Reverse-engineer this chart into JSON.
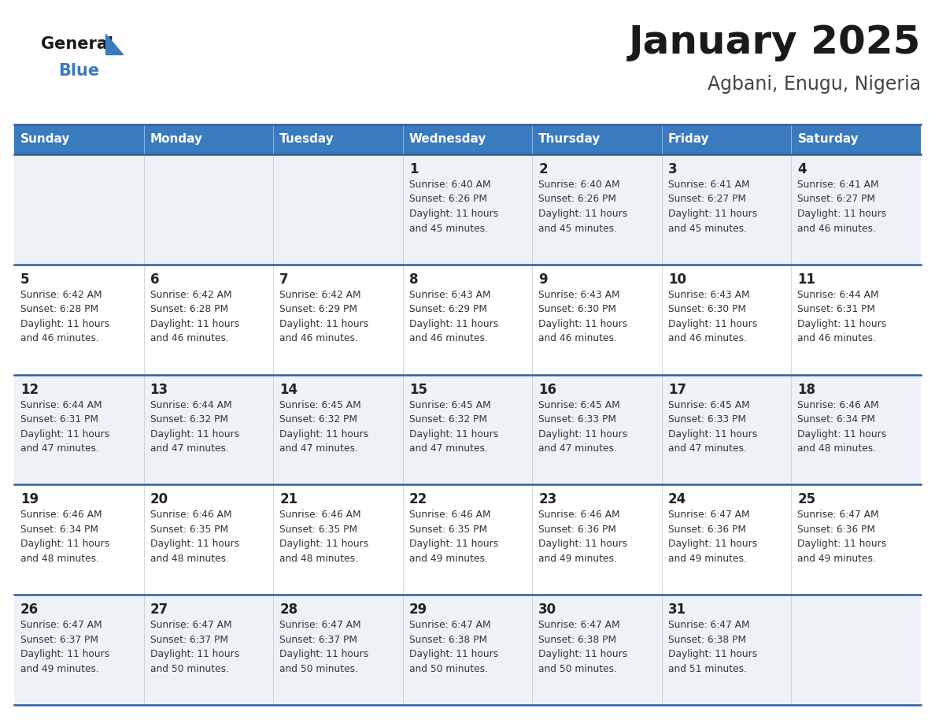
{
  "title": "January 2025",
  "subtitle": "Agbani, Enugu, Nigeria",
  "days_of_week": [
    "Sunday",
    "Monday",
    "Tuesday",
    "Wednesday",
    "Thursday",
    "Friday",
    "Saturday"
  ],
  "header_bg": "#3a7abf",
  "header_text": "#ffffff",
  "row_bg_odd": "#eef2f7",
  "row_bg_even": "#ffffff",
  "divider_color": "#2e5f9e",
  "cell_text_color": "#333333",
  "day_num_color": "#222222",
  "title_color": "#1a1a1a",
  "subtitle_color": "#444444",
  "logo_general_color": "#1a1a1a",
  "logo_blue_color": "#3a7abf",
  "logo_triangle_color": "#3a7abf",
  "calendar": [
    [
      {
        "day": "",
        "sunrise": "",
        "sunset": "",
        "daylight": ""
      },
      {
        "day": "",
        "sunrise": "",
        "sunset": "",
        "daylight": ""
      },
      {
        "day": "",
        "sunrise": "",
        "sunset": "",
        "daylight": ""
      },
      {
        "day": "1",
        "sunrise": "6:40 AM",
        "sunset": "6:26 PM",
        "daylight": "11 hours and 45 minutes."
      },
      {
        "day": "2",
        "sunrise": "6:40 AM",
        "sunset": "6:26 PM",
        "daylight": "11 hours and 45 minutes."
      },
      {
        "day": "3",
        "sunrise": "6:41 AM",
        "sunset": "6:27 PM",
        "daylight": "11 hours and 45 minutes."
      },
      {
        "day": "4",
        "sunrise": "6:41 AM",
        "sunset": "6:27 PM",
        "daylight": "11 hours and 46 minutes."
      }
    ],
    [
      {
        "day": "5",
        "sunrise": "6:42 AM",
        "sunset": "6:28 PM",
        "daylight": "11 hours and 46 minutes."
      },
      {
        "day": "6",
        "sunrise": "6:42 AM",
        "sunset": "6:28 PM",
        "daylight": "11 hours and 46 minutes."
      },
      {
        "day": "7",
        "sunrise": "6:42 AM",
        "sunset": "6:29 PM",
        "daylight": "11 hours and 46 minutes."
      },
      {
        "day": "8",
        "sunrise": "6:43 AM",
        "sunset": "6:29 PM",
        "daylight": "11 hours and 46 minutes."
      },
      {
        "day": "9",
        "sunrise": "6:43 AM",
        "sunset": "6:30 PM",
        "daylight": "11 hours and 46 minutes."
      },
      {
        "day": "10",
        "sunrise": "6:43 AM",
        "sunset": "6:30 PM",
        "daylight": "11 hours and 46 minutes."
      },
      {
        "day": "11",
        "sunrise": "6:44 AM",
        "sunset": "6:31 PM",
        "daylight": "11 hours and 46 minutes."
      }
    ],
    [
      {
        "day": "12",
        "sunrise": "6:44 AM",
        "sunset": "6:31 PM",
        "daylight": "11 hours and 47 minutes."
      },
      {
        "day": "13",
        "sunrise": "6:44 AM",
        "sunset": "6:32 PM",
        "daylight": "11 hours and 47 minutes."
      },
      {
        "day": "14",
        "sunrise": "6:45 AM",
        "sunset": "6:32 PM",
        "daylight": "11 hours and 47 minutes."
      },
      {
        "day": "15",
        "sunrise": "6:45 AM",
        "sunset": "6:32 PM",
        "daylight": "11 hours and 47 minutes."
      },
      {
        "day": "16",
        "sunrise": "6:45 AM",
        "sunset": "6:33 PM",
        "daylight": "11 hours and 47 minutes."
      },
      {
        "day": "17",
        "sunrise": "6:45 AM",
        "sunset": "6:33 PM",
        "daylight": "11 hours and 47 minutes."
      },
      {
        "day": "18",
        "sunrise": "6:46 AM",
        "sunset": "6:34 PM",
        "daylight": "11 hours and 48 minutes."
      }
    ],
    [
      {
        "day": "19",
        "sunrise": "6:46 AM",
        "sunset": "6:34 PM",
        "daylight": "11 hours and 48 minutes."
      },
      {
        "day": "20",
        "sunrise": "6:46 AM",
        "sunset": "6:35 PM",
        "daylight": "11 hours and 48 minutes."
      },
      {
        "day": "21",
        "sunrise": "6:46 AM",
        "sunset": "6:35 PM",
        "daylight": "11 hours and 48 minutes."
      },
      {
        "day": "22",
        "sunrise": "6:46 AM",
        "sunset": "6:35 PM",
        "daylight": "11 hours and 49 minutes."
      },
      {
        "day": "23",
        "sunrise": "6:46 AM",
        "sunset": "6:36 PM",
        "daylight": "11 hours and 49 minutes."
      },
      {
        "day": "24",
        "sunrise": "6:47 AM",
        "sunset": "6:36 PM",
        "daylight": "11 hours and 49 minutes."
      },
      {
        "day": "25",
        "sunrise": "6:47 AM",
        "sunset": "6:36 PM",
        "daylight": "11 hours and 49 minutes."
      }
    ],
    [
      {
        "day": "26",
        "sunrise": "6:47 AM",
        "sunset": "6:37 PM",
        "daylight": "11 hours and 49 minutes."
      },
      {
        "day": "27",
        "sunrise": "6:47 AM",
        "sunset": "6:37 PM",
        "daylight": "11 hours and 50 minutes."
      },
      {
        "day": "28",
        "sunrise": "6:47 AM",
        "sunset": "6:37 PM",
        "daylight": "11 hours and 50 minutes."
      },
      {
        "day": "29",
        "sunrise": "6:47 AM",
        "sunset": "6:38 PM",
        "daylight": "11 hours and 50 minutes."
      },
      {
        "day": "30",
        "sunrise": "6:47 AM",
        "sunset": "6:38 PM",
        "daylight": "11 hours and 50 minutes."
      },
      {
        "day": "31",
        "sunrise": "6:47 AM",
        "sunset": "6:38 PM",
        "daylight": "11 hours and 51 minutes."
      },
      {
        "day": "",
        "sunrise": "",
        "sunset": "",
        "daylight": ""
      }
    ]
  ]
}
